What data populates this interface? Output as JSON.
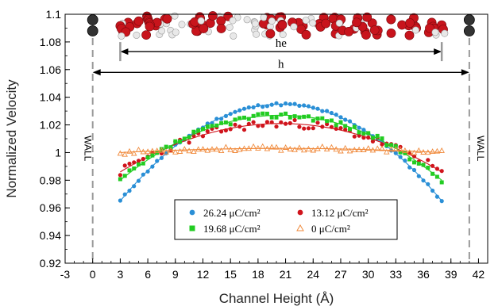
{
  "chart_data": {
    "type": "scatter",
    "xlabel": "Channel Height (Å)",
    "ylabel": "Normalized Velocity",
    "xlim": [
      -3,
      43
    ],
    "ylim": [
      0.92,
      1.1
    ],
    "xticks": [
      "-3",
      "0",
      "3",
      "6",
      "9",
      "12",
      "15",
      "18",
      "21",
      "24",
      "27",
      "30",
      "33",
      "36",
      "39",
      "42"
    ],
    "yticks": [
      "0.92",
      "0.94",
      "0.96",
      "0.98",
      "1",
      "1.02",
      "1.04",
      "1.06",
      "1.08",
      "1.1"
    ],
    "grid": false,
    "legend_position": "bottom-center",
    "series": [
      {
        "name": "26.24 μC/cm²",
        "color": "#2a8fd6",
        "marker": "circle",
        "center": 20.5,
        "halfwidth": 17.5,
        "peak": 1.035,
        "edge": 0.965,
        "x_start": 3.0,
        "x_end": 38.0,
        "noise": 0.001,
        "seed": 11
      },
      {
        "name": "13.12 μC/cm²",
        "color": "#d0141c",
        "marker": "circle",
        "center": 20.5,
        "halfwidth": 17.5,
        "peak": 1.021,
        "edge": 0.986,
        "x_start": 3.0,
        "x_end": 38.0,
        "noise": 0.003,
        "seed": 23
      },
      {
        "name": "19.68 μC/cm²",
        "color": "#22cc22",
        "marker": "square",
        "center": 20.5,
        "halfwidth": 17.5,
        "peak": 1.027,
        "edge": 0.98,
        "x_start": 3.0,
        "x_end": 38.0,
        "noise": 0.002,
        "seed": 37
      },
      {
        "name": "0 μC/cm²",
        "color": "#f08a3c",
        "marker": "triangle",
        "center": 20.5,
        "halfwidth": 17.5,
        "peak": 1.003,
        "edge": 1.0,
        "x_start": 3.0,
        "x_end": 38.0,
        "noise": 0.0015,
        "seed": 53
      }
    ],
    "annotations": {
      "he_label": "he",
      "he_range": [
        3,
        38
      ],
      "h_label": "h",
      "h_range": [
        0,
        41
      ],
      "wall_left": "WALL",
      "wall_right": "WALL",
      "wall_positions": [
        0,
        41
      ]
    }
  }
}
